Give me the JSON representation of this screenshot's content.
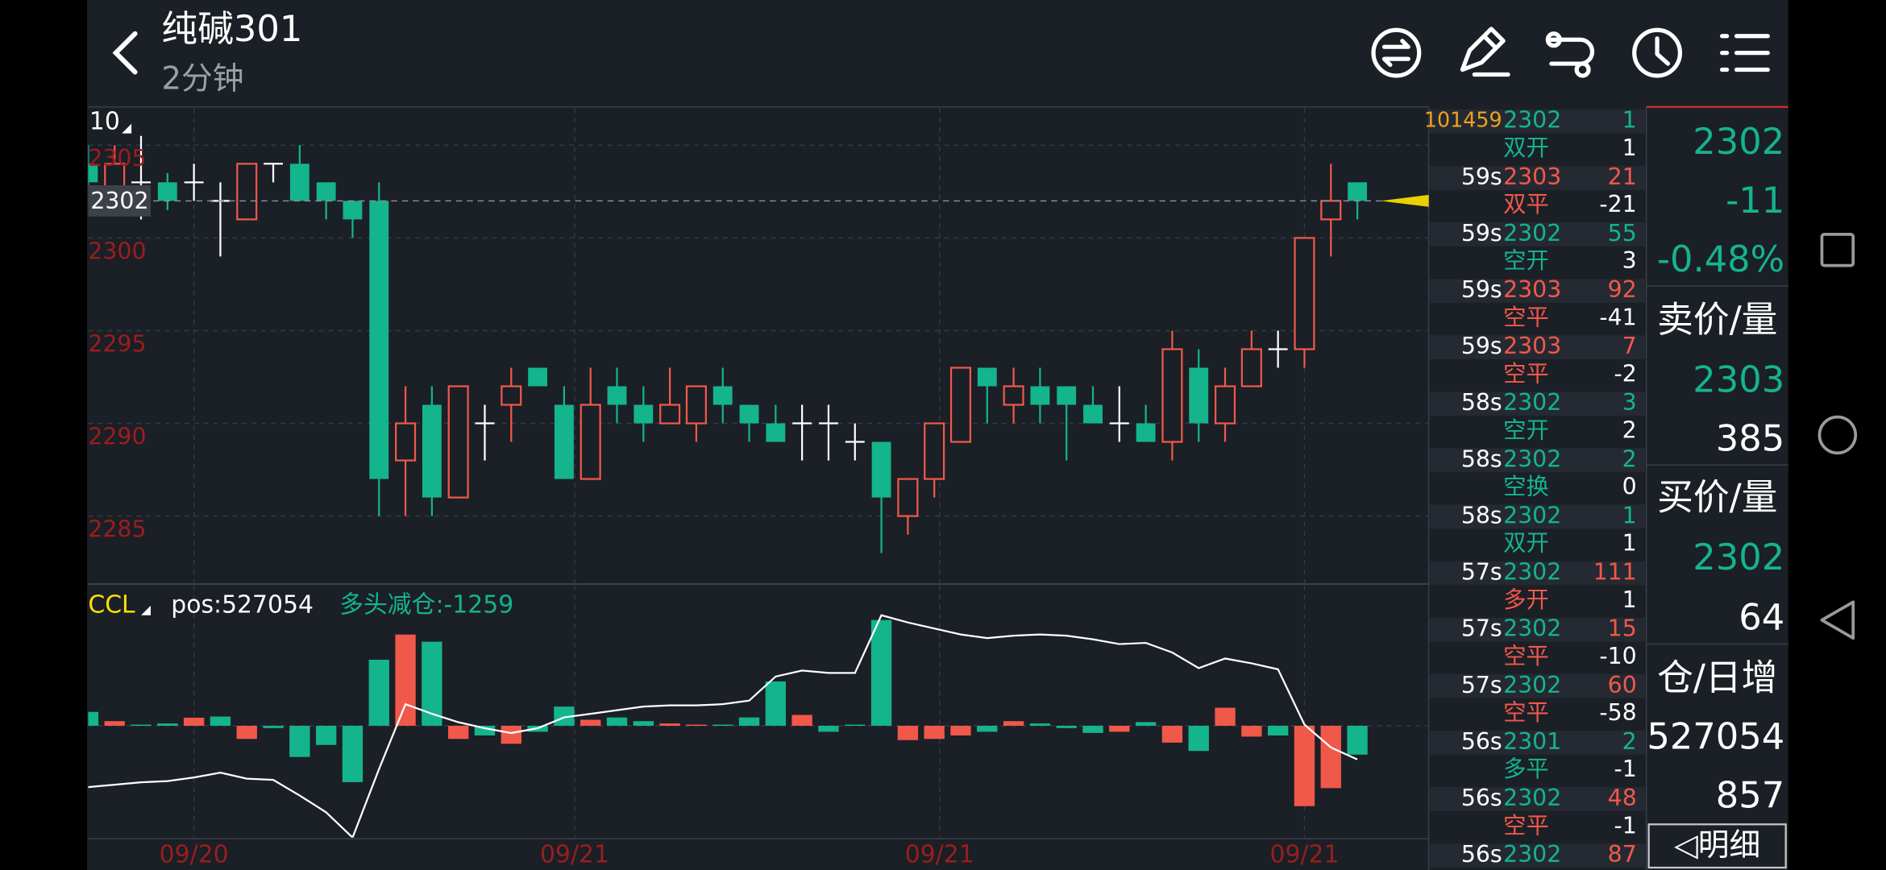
{
  "header": {
    "title": "纯碱301",
    "subtitle": "2分钟"
  },
  "chart_data": [
    {
      "type": "candlestick",
      "corner_label": "10",
      "open": [
        2304,
        2302,
        2303,
        2303,
        2303,
        2302,
        2301,
        2304,
        2304,
        2303,
        2302,
        2302,
        2288,
        2291,
        2286,
        2290,
        2291,
        2293,
        2291,
        2287,
        2292,
        2291,
        2290,
        2290,
        2292,
        2291,
        2290,
        2290,
        2290,
        2289,
        2289,
        2285,
        2287,
        2289,
        2293,
        2291,
        2292,
        2292,
        2291,
        2290,
        2290,
        2289,
        2293,
        2290,
        2292,
        2294,
        2294,
        2301,
        2303
      ],
      "high": [
        2305,
        2305,
        2305.5,
        2303.5,
        2304,
        2303,
        2304,
        2304,
        2305,
        2303,
        2302,
        2303,
        2292,
        2292,
        2292,
        2291,
        2293,
        2293,
        2292,
        2293,
        2293,
        2292,
        2293,
        2292,
        2293,
        2291,
        2291,
        2291,
        2291,
        2290,
        2289,
        2287,
        2290,
        2293,
        2293,
        2293,
        2293,
        2292,
        2292,
        2292,
        2291,
        2295,
        2294,
        2293,
        2295,
        2295,
        2300,
        2304,
        2303
      ],
      "low": [
        2302,
        2301.5,
        2301,
        2301.5,
        2302,
        2299,
        2301,
        2303,
        2302,
        2301,
        2300,
        2285,
        2285,
        2285,
        2286,
        2288,
        2289,
        2292,
        2287,
        2287,
        2290,
        2289,
        2290,
        2289,
        2290,
        2289,
        2289,
        2288,
        2288,
        2288,
        2283,
        2284,
        2286,
        2289,
        2290,
        2290,
        2290,
        2288,
        2290,
        2289,
        2289,
        2288,
        2289,
        2289,
        2292,
        2293,
        2293,
        2299,
        2301
      ],
      "close": [
        2303,
        2304,
        2303,
        2302,
        2303,
        2302,
        2304,
        2304,
        2302,
        2302,
        2301,
        2287,
        2290,
        2286,
        2292,
        2290,
        2292,
        2292,
        2287,
        2291,
        2291,
        2290,
        2291,
        2292,
        2291,
        2290,
        2289,
        2290,
        2290,
        2289,
        2286,
        2287,
        2290,
        2293,
        2292,
        2292,
        2291,
        2291,
        2290,
        2290,
        2289,
        2294,
        2290,
        2292,
        2294,
        2294,
        2300,
        2302,
        2302
      ],
      "up_color": "#f0584a",
      "down_color": "#14b48c",
      "flat_color": "#ffffff",
      "ylim": [
        2281.4,
        2307
      ],
      "yticks": [
        2285,
        2290,
        2295,
        2300,
        2305
      ],
      "xlim": [
        0,
        50.7
      ],
      "xticks": [
        {
          "value": 4,
          "label": "09/20"
        },
        {
          "value": 18.4,
          "label": "09/21"
        },
        {
          "value": 32.2,
          "label": "09/21"
        },
        {
          "value": 46,
          "label": "09/21"
        }
      ],
      "last_price": 2302,
      "grid": true
    },
    {
      "type": "bar",
      "title": "CCL",
      "values": [
        600,
        200,
        50,
        100,
        350,
        400,
        -570,
        -100,
        -1350,
        -830,
        -2440,
        2860,
        3950,
        3640,
        -570,
        -420,
        -780,
        -260,
        830,
        260,
        360,
        200,
        100,
        50,
        50,
        360,
        1920,
        470,
        -260,
        50,
        4580,
        -620,
        -570,
        -420,
        -260,
        200,
        100,
        -100,
        -310,
        -260,
        160,
        -730,
        -1090,
        780,
        -470,
        -420,
        -3480,
        -2700,
        -1250
      ],
      "colors": [
        "#14b48c",
        "#f0584a",
        "#14b48c",
        "#14b48c",
        "#f0584a",
        "#14b48c",
        "#f0584a",
        "#14b48c",
        "#14b48c",
        "#14b48c",
        "#14b48c",
        "#14b48c",
        "#f0584a",
        "#14b48c",
        "#f0584a",
        "#14b48c",
        "#f0584a",
        "#14b48c",
        "#14b48c",
        "#f0584a",
        "#14b48c",
        "#14b48c",
        "#f0584a",
        "#f0584a",
        "#14b48c",
        "#14b48c",
        "#14b48c",
        "#f0584a",
        "#14b48c",
        "#14b48c",
        "#14b48c",
        "#f0584a",
        "#f0584a",
        "#f0584a",
        "#14b48c",
        "#f0584a",
        "#14b48c",
        "#14b48c",
        "#14b48c",
        "#f0584a",
        "#14b48c",
        "#f0584a",
        "#14b48c",
        "#f0584a",
        "#f0584a",
        "#14b48c",
        "#f0584a",
        "#f0584a",
        "#14b48c"
      ],
      "ylim": [
        -4840,
        5930
      ],
      "xlim": [
        0,
        50.7
      ],
      "series": [
        {
          "name": "pos:527054",
          "color": "#ffffff",
          "axis": "y2",
          "values": [
            524915,
            525101,
            525287,
            525380,
            525659,
            526031,
            525566,
            525473,
            524264,
            522962,
            521009,
            526310,
            531332,
            530588,
            529937,
            529472,
            529100,
            529472,
            530309,
            530588,
            530867,
            531146,
            531239,
            531239,
            531332,
            531611,
            533471,
            533936,
            533750,
            533750,
            538214,
            537656,
            537191,
            536726,
            536447,
            536633,
            536726,
            536633,
            536354,
            535982,
            536075,
            535331,
            534122,
            534866,
            534494,
            534029,
            529751,
            527984,
            527054
          ]
        }
      ],
      "y2lim": [
        521010,
        540260
      ],
      "annotation": "多头减仓:-1259",
      "annotation_color": "#14b48c"
    }
  ],
  "trades": [
    {
      "time": "101459",
      "price": "2302",
      "price_color": "#14b48c",
      "volume": "1",
      "volume_color": "#14b48c",
      "kind": "双开",
      "kind_color": "#14b48c",
      "change": "1"
    },
    {
      "time": "59s",
      "price": "2303",
      "price_color": "#f0584a",
      "volume": "21",
      "volume_color": "#f0584a",
      "kind": "双平",
      "kind_color": "#f0584a",
      "change": "-21"
    },
    {
      "time": "59s",
      "price": "2302",
      "price_color": "#14b48c",
      "volume": "55",
      "volume_color": "#14b48c",
      "kind": "空开",
      "kind_color": "#14b48c",
      "change": "3"
    },
    {
      "time": "59s",
      "price": "2303",
      "price_color": "#f0584a",
      "volume": "92",
      "volume_color": "#f0584a",
      "kind": "空平",
      "kind_color": "#f0584a",
      "change": "-41"
    },
    {
      "time": "59s",
      "price": "2303",
      "price_color": "#f0584a",
      "volume": "7",
      "volume_color": "#f0584a",
      "kind": "空平",
      "kind_color": "#f0584a",
      "change": "-2"
    },
    {
      "time": "58s",
      "price": "2302",
      "price_color": "#14b48c",
      "volume": "3",
      "volume_color": "#14b48c",
      "kind": "空开",
      "kind_color": "#14b48c",
      "change": "2"
    },
    {
      "time": "58s",
      "price": "2302",
      "price_color": "#14b48c",
      "volume": "2",
      "volume_color": "#14b48c",
      "kind": "空换",
      "kind_color": "#14b48c",
      "change": "0"
    },
    {
      "time": "58s",
      "price": "2302",
      "price_color": "#14b48c",
      "volume": "1",
      "volume_color": "#14b48c",
      "kind": "双开",
      "kind_color": "#14b48c",
      "change": "1"
    },
    {
      "time": "57s",
      "price": "2302",
      "price_color": "#14b48c",
      "volume": "111",
      "volume_color": "#f0584a",
      "kind": "多开",
      "kind_color": "#f0584a",
      "change": "1"
    },
    {
      "time": "57s",
      "price": "2302",
      "price_color": "#14b48c",
      "volume": "15",
      "volume_color": "#f0584a",
      "kind": "空平",
      "kind_color": "#f0584a",
      "change": "-10"
    },
    {
      "time": "57s",
      "price": "2302",
      "price_color": "#14b48c",
      "volume": "60",
      "volume_color": "#f0584a",
      "kind": "空平",
      "kind_color": "#f0584a",
      "change": "-58"
    },
    {
      "time": "56s",
      "price": "2301",
      "price_color": "#14b48c",
      "volume": "2",
      "volume_color": "#14b48c",
      "kind": "多平",
      "kind_color": "#14b48c",
      "change": "-1"
    },
    {
      "time": "56s",
      "price": "2302",
      "price_color": "#14b48c",
      "volume": "48",
      "volume_color": "#f0584a",
      "kind": "空平",
      "kind_color": "#f0584a",
      "change": "-1"
    },
    {
      "time": "56s",
      "price": "2302",
      "price_color": "#14b48c",
      "volume": "87",
      "volume_color": "#f0584a"
    }
  ],
  "quote": {
    "last": "2302",
    "change": "-11",
    "change_pct": "-0.48%",
    "ask_label": "卖价/量",
    "ask_price": "2303",
    "ask_volume": "385",
    "bid_label": "买价/量",
    "bid_price": "2302",
    "bid_volume": "64",
    "oi_label": "仓/日增",
    "open_interest": "527054",
    "oi_change": "857",
    "detail_button": "◁明细"
  }
}
